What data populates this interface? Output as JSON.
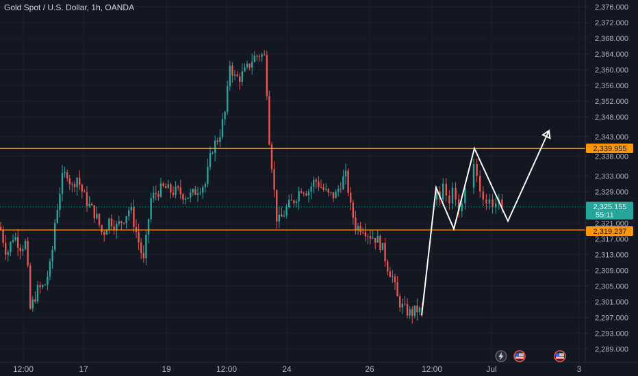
{
  "header": {
    "title": "Gold Spot / U.S. Dollar, 1h, OANDA"
  },
  "colors": {
    "background": "#131722",
    "up": "#26a69a",
    "down": "#ef5350",
    "level_line": "#ff9800",
    "price_tag": "#26a69a",
    "drawing": "#ffffff",
    "axis_text": "#b2b5be"
  },
  "price_tags": {
    "resistance": "2,339.955",
    "support": "2,319.237",
    "current_price": "2,325.155",
    "countdown": "55:11"
  },
  "events": [
    {
      "icon": "lightning-icon"
    },
    {
      "icon": "us-flag-icon"
    },
    {
      "icon": "us-flag-icon"
    }
  ],
  "chart_data": {
    "type": "candlestick",
    "symbol": "Gold Spot / U.S. Dollar",
    "interval": "1h",
    "source": "OANDA",
    "y_ticks": [
      "2,376.000",
      "2,372.000",
      "2,368.000",
      "2,364.000",
      "2,360.000",
      "2,356.000",
      "2,352.000",
      "2,348.000",
      "2,343.000",
      "2,338.000",
      "2,333.000",
      "2,329.000",
      "2,325.000",
      "2,321.000",
      "2,317.000",
      "2,313.000",
      "2,309.000",
      "2,305.000",
      "2,301.000",
      "2,297.000",
      "2,293.000",
      "2,289.000"
    ],
    "x_ticks": [
      "12:00",
      "17",
      "19",
      "12:00",
      "24",
      "26",
      "12:00",
      "Jul",
      "3"
    ],
    "ylim": [
      2287,
      2378
    ],
    "levels": [
      {
        "name": "resistance",
        "price": 2339.955
      },
      {
        "name": "support",
        "price": 2319.237
      }
    ],
    "last_price": 2325.155,
    "approx_closes": [
      [
        0,
        2320
      ],
      [
        10,
        2313
      ],
      [
        20,
        2318
      ],
      [
        30,
        2315
      ],
      [
        38,
        2316
      ],
      [
        44,
        2299
      ],
      [
        55,
        2304
      ],
      [
        65,
        2305
      ],
      [
        75,
        2311
      ],
      [
        80,
        2321
      ],
      [
        90,
        2332
      ],
      [
        98,
        2334
      ],
      [
        105,
        2330
      ],
      [
        112,
        2333
      ],
      [
        122,
        2328
      ],
      [
        132,
        2325
      ],
      [
        140,
        2323
      ],
      [
        150,
        2318
      ],
      [
        160,
        2322
      ],
      [
        170,
        2320
      ],
      [
        180,
        2322
      ],
      [
        190,
        2325
      ],
      [
        200,
        2318
      ],
      [
        210,
        2311
      ],
      [
        220,
        2327
      ],
      [
        230,
        2329
      ],
      [
        240,
        2330
      ],
      [
        250,
        2329
      ],
      [
        260,
        2329
      ],
      [
        270,
        2328
      ],
      [
        280,
        2328
      ],
      [
        290,
        2330
      ],
      [
        300,
        2331
      ],
      [
        310,
        2340
      ],
      [
        320,
        2343
      ],
      [
        330,
        2350
      ],
      [
        336,
        2362
      ],
      [
        342,
        2358
      ],
      [
        350,
        2358
      ],
      [
        360,
        2360
      ],
      [
        370,
        2363
      ],
      [
        380,
        2364
      ],
      [
        388,
        2363
      ],
      [
        392,
        2345
      ],
      [
        396,
        2338
      ],
      [
        400,
        2330
      ],
      [
        405,
        2321
      ],
      [
        410,
        2322
      ],
      [
        420,
        2325
      ],
      [
        430,
        2327
      ],
      [
        440,
        2330
      ],
      [
        450,
        2329
      ],
      [
        460,
        2332
      ],
      [
        470,
        2330
      ],
      [
        480,
        2328
      ],
      [
        490,
        2328
      ],
      [
        500,
        2332
      ],
      [
        506,
        2333
      ],
      [
        512,
        2325
      ],
      [
        520,
        2320
      ],
      [
        530,
        2320
      ],
      [
        540,
        2318
      ],
      [
        550,
        2317
      ],
      [
        558,
        2315
      ],
      [
        566,
        2310
      ],
      [
        574,
        2307
      ],
      [
        580,
        2302
      ],
      [
        590,
        2299
      ],
      [
        600,
        2298
      ],
      [
        610,
        2299
      ],
      [
        618,
        2298
      ]
    ],
    "projection_path": [
      [
        616,
        2297.5
      ],
      [
        637,
        2330
      ],
      [
        663,
        2319.5
      ],
      [
        693,
        2340
      ],
      [
        742,
        2321.5
      ],
      [
        802,
        2344.5
      ]
    ]
  }
}
